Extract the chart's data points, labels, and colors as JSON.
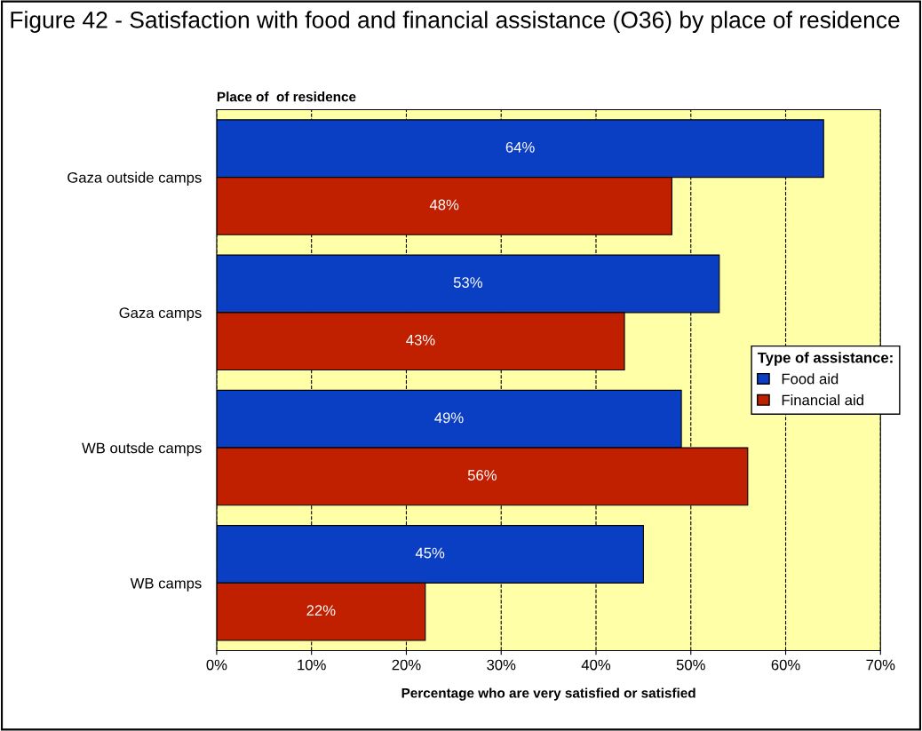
{
  "chart_data": {
    "type": "bar",
    "orientation": "horizontal",
    "title": "Figure 42 - Satisfaction with food and financial assistance (O36) by place of residence",
    "ylabel": "Place of  of residence",
    "xlabel": "Percentage who are very satisfied or satisfied",
    "legend_title": "Type of assistance:",
    "legend": "right",
    "grid": "x",
    "categories": [
      "Gaza outside camps",
      "Gaza camps",
      "WB outsde camps",
      "WB camps"
    ],
    "series": [
      {
        "name": "Food aid",
        "color": "#0a3fc4",
        "values": [
          64,
          53,
          49,
          45
        ],
        "value_labels": [
          "64%",
          "53%",
          "49%",
          "45%"
        ]
      },
      {
        "name": "Financial aid",
        "color": "#c02000",
        "values": [
          48,
          43,
          56,
          22
        ],
        "value_labels": [
          "48%",
          "43%",
          "56%",
          "22%"
        ]
      }
    ],
    "xlim": [
      0,
      70
    ],
    "xticks": [
      {
        "value": 0,
        "label": "0%"
      },
      {
        "value": 10,
        "label": "10%"
      },
      {
        "value": 20,
        "label": "20%"
      },
      {
        "value": 30,
        "label": "30%"
      },
      {
        "value": 40,
        "label": "40%"
      },
      {
        "value": 50,
        "label": "50%"
      },
      {
        "value": 60,
        "label": "60%"
      },
      {
        "value": 70,
        "label": "70%"
      }
    ]
  }
}
